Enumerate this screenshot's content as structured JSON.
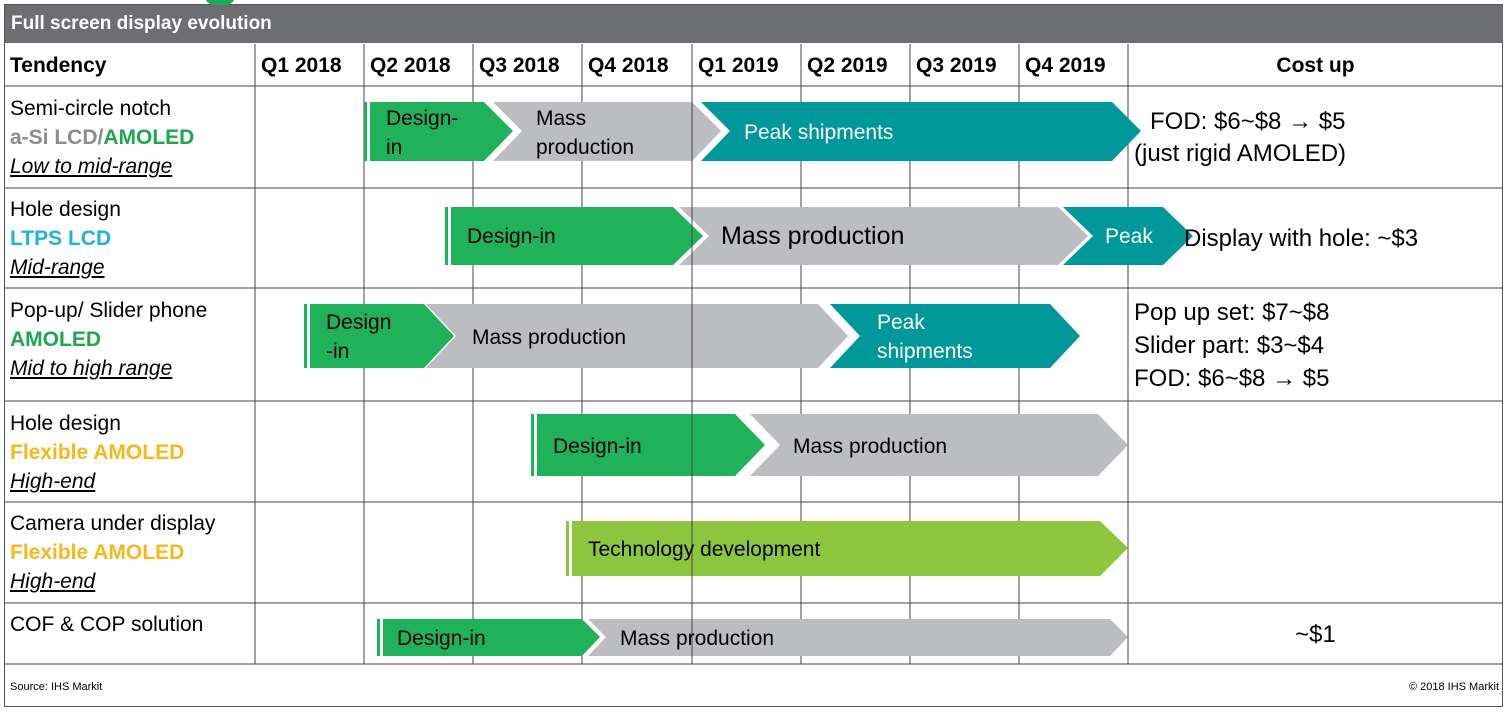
{
  "title": "Full screen display evolution",
  "headers": {
    "tendency": "Tendency",
    "quarters": [
      "Q1 2018",
      "Q2 2018",
      "Q3 2018",
      "Q4 2018",
      "Q1 2019",
      "Q2 2019",
      "Q3 2019",
      "Q4 2019"
    ],
    "cost": "Cost up"
  },
  "rows": [
    {
      "name": "Semi-circle notch",
      "tech_a": "a-Si LCD/",
      "tech_b": "AMOLED",
      "range": "Low to mid-range",
      "phases": [
        "Design-\nin",
        "Mass\nproduction",
        "Peak shipments"
      ],
      "cost": [
        "FOD: $6~$8 → $5",
        "(just rigid AMOLED)"
      ]
    },
    {
      "name": "Hole design",
      "tech_a": "LTPS LCD",
      "tech_b": "",
      "range": "Mid-range",
      "phases": [
        "Design-in",
        "Mass production",
        "Peak"
      ],
      "cost": [
        "Display with hole: ~$3"
      ]
    },
    {
      "name": "Pop-up/ Slider phone",
      "tech_a": "AMOLED",
      "tech_b": "",
      "range": "Mid to high range",
      "phases": [
        "Design\n-in",
        "Mass production",
        "Peak\nshipments"
      ],
      "cost": [
        "Pop up set: $7~$8",
        "Slider part:  $3~$4",
        "FOD: $6~$8 → $5"
      ]
    },
    {
      "name": "Hole design",
      "tech_a": "Flexible AMOLED",
      "tech_b": "",
      "range": "High-end",
      "phases": [
        "Design-in",
        "Mass production"
      ],
      "cost": []
    },
    {
      "name": "Camera under display",
      "tech_a": "Flexible AMOLED",
      "tech_b": "",
      "range": "High-end",
      "phases": [
        "Technology development"
      ],
      "cost": []
    },
    {
      "name": "COF & COP solution",
      "tech_a": "",
      "tech_b": "",
      "range": "",
      "phases": [
        "Design-in",
        "Mass production"
      ],
      "cost": [
        "~$1"
      ]
    }
  ],
  "colors": {
    "design": "#1fb25a",
    "mass": "#bcbdc0",
    "peak": "#00989a",
    "tech": "#8cc63f",
    "header": "#6d6e71"
  },
  "footer": {
    "source": "Source: IHS Markit",
    "copyright": "© 2018 IHS Markit"
  }
}
